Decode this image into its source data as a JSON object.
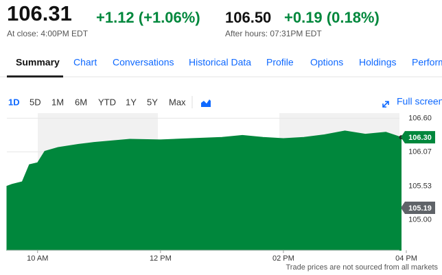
{
  "header": {
    "price": "106.31",
    "change": "+1.12 (+1.06%)",
    "close_note": "At close: 4:00PM EDT",
    "after_price": "106.50",
    "after_change": "+0.19 (0.18%)",
    "after_note": "After hours: 07:31PM EDT"
  },
  "tabs": [
    "Summary",
    "Chart",
    "Conversations",
    "Historical Data",
    "Profile",
    "Options",
    "Holdings",
    "Performance"
  ],
  "ranges": [
    "1D",
    "5D",
    "1M",
    "6M",
    "YTD",
    "1Y",
    "5Y",
    "Max"
  ],
  "full_screen": "Full screen",
  "footnote": "Trade prices are not sourced from all markets",
  "chart_data": {
    "type": "area",
    "color": "#00873c",
    "grid": true,
    "x": [
      570,
      575,
      585,
      592,
      600,
      607,
      620,
      640,
      655,
      690,
      720,
      750,
      780,
      800,
      820,
      840,
      860,
      880,
      900,
      920,
      940,
      955
    ],
    "values": [
      105.53,
      105.56,
      105.6,
      105.87,
      105.9,
      106.08,
      106.14,
      106.19,
      106.22,
      106.27,
      106.26,
      106.28,
      106.3,
      106.33,
      106.3,
      106.28,
      106.3,
      106.34,
      106.4,
      106.35,
      106.38,
      106.3
    ],
    "xlim": [
      570,
      960
    ],
    "xticks": [
      {
        "value": 600,
        "label": "10 AM"
      },
      {
        "value": 720,
        "label": "12 PM"
      },
      {
        "value": 840,
        "label": "02 PM"
      },
      {
        "value": 960,
        "label": "04 PM"
      }
    ],
    "ylim": [
      104.52,
      106.68
    ],
    "yticks": [
      {
        "value": 106.6,
        "label": "106.60"
      },
      106.07,
      105.53,
      {
        "value": 105,
        "label": "105.00"
      }
    ],
    "markers": [
      {
        "value": 106.3,
        "label": "106.30",
        "color": "#00873c"
      },
      {
        "value": 105.19,
        "label": "105.19",
        "color": "#5f6368"
      }
    ]
  }
}
